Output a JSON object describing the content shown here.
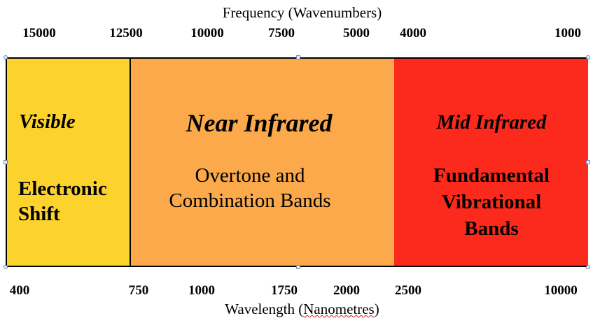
{
  "top_axis": {
    "title": "Frequency (Wavenumbers)",
    "ticks": [
      "15000",
      "12500",
      "10000",
      "7500",
      "5000",
      "4000",
      "1000"
    ]
  },
  "bottom_axis": {
    "title_prefix": "Wavelength (",
    "title_squiggle": "Nanometres",
    "title_suffix": ")",
    "ticks": [
      "400",
      "750",
      "1000",
      "1750",
      "2000",
      "2500",
      "10000"
    ]
  },
  "regions": {
    "visible": {
      "title": "Visible",
      "desc_lines": [
        "Electronic",
        "Shift"
      ],
      "color": "#FCD22D"
    },
    "near_infrared": {
      "title": "Near Infrared",
      "desc_lines": [
        "Overtone and",
        "Combination Bands"
      ],
      "color": "#FBA94A"
    },
    "mid_infrared": {
      "title": "Mid Infrared",
      "desc_lines": [
        "Fundamental",
        "Vibrational",
        "Bands"
      ],
      "color": "#FC2A1C"
    }
  }
}
